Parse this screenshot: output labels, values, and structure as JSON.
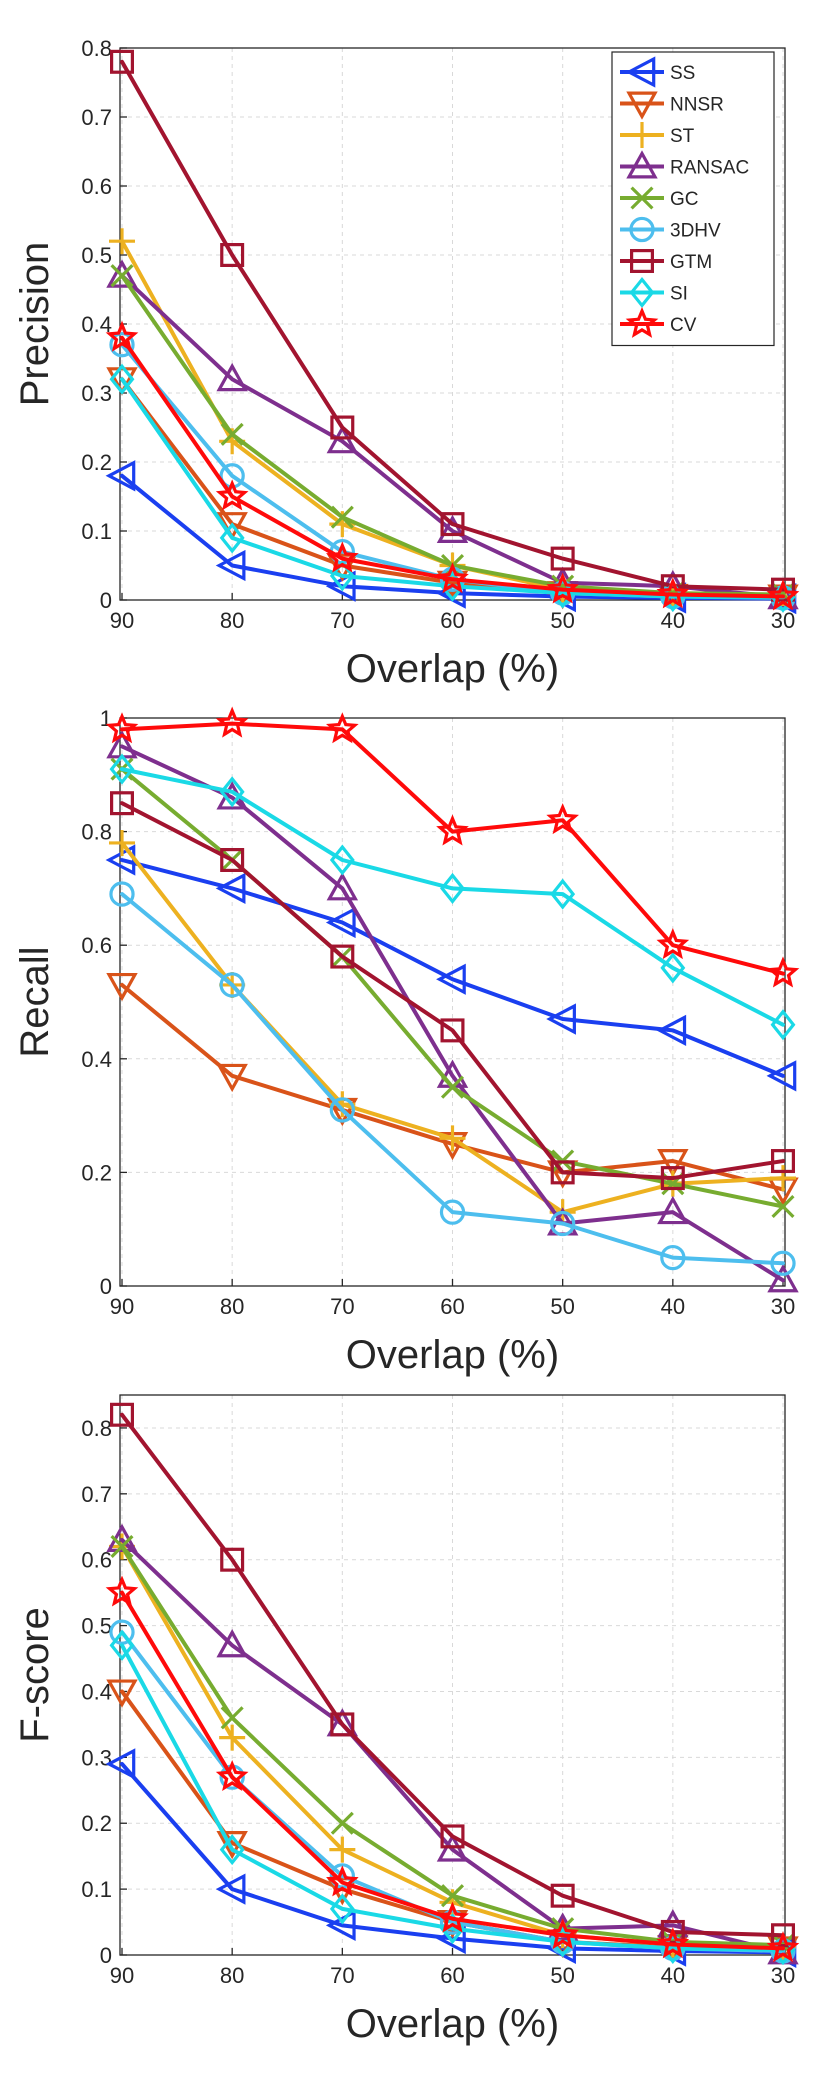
{
  "chart_data": [
    {
      "type": "line",
      "ylabel": "Precision",
      "xlabel": "Overlap (%)",
      "x": [
        90,
        80,
        70,
        60,
        50,
        40,
        30
      ],
      "xticks": [
        "90",
        "80",
        "70",
        "60",
        "50",
        "40",
        "30"
      ],
      "ylim": [
        0,
        0.8
      ],
      "yticks": [
        "0",
        "0.1",
        "0.2",
        "0.3",
        "0.4",
        "0.5",
        "0.6",
        "0.7",
        "0.8"
      ],
      "grid": true,
      "legend": "top-right",
      "series": [
        {
          "name": "SS",
          "color": "#1a3ff0",
          "marker": "triangle-left",
          "values": [
            0.18,
            0.05,
            0.02,
            0.01,
            0.005,
            0.003,
            0.002
          ]
        },
        {
          "name": "NNSR",
          "color": "#d95319",
          "marker": "triangle-down",
          "values": [
            0.32,
            0.11,
            0.05,
            0.025,
            0.01,
            0.006,
            0.005
          ]
        },
        {
          "name": "ST",
          "color": "#edb120",
          "marker": "plus",
          "values": [
            0.52,
            0.23,
            0.11,
            0.05,
            0.015,
            0.008,
            0.006
          ]
        },
        {
          "name": "RANSAC",
          "color": "#7e2f8e",
          "marker": "triangle-up",
          "values": [
            0.47,
            0.32,
            0.23,
            0.1,
            0.025,
            0.02,
            0.004
          ]
        },
        {
          "name": "GC",
          "color": "#77ac30",
          "marker": "x",
          "values": [
            0.47,
            0.24,
            0.12,
            0.05,
            0.02,
            0.01,
            0.008
          ]
        },
        {
          "name": "3DHV",
          "color": "#4dbeee",
          "marker": "circle",
          "values": [
            0.37,
            0.18,
            0.07,
            0.03,
            0.01,
            0.005,
            0.003
          ]
        },
        {
          "name": "GTM",
          "color": "#a2142f",
          "marker": "square",
          "values": [
            0.78,
            0.5,
            0.25,
            0.11,
            0.06,
            0.02,
            0.015
          ]
        },
        {
          "name": "SI",
          "color": "#1ad9e6",
          "marker": "diamond",
          "values": [
            0.32,
            0.09,
            0.035,
            0.02,
            0.01,
            0.005,
            0.004
          ]
        },
        {
          "name": "CV",
          "color": "#ff0a0a",
          "marker": "star",
          "values": [
            0.38,
            0.15,
            0.06,
            0.03,
            0.015,
            0.008,
            0.005
          ]
        }
      ]
    },
    {
      "type": "line",
      "ylabel": "Recall",
      "xlabel": "Overlap (%)",
      "x": [
        90,
        80,
        70,
        60,
        50,
        40,
        30
      ],
      "xticks": [
        "90",
        "80",
        "70",
        "60",
        "50",
        "40",
        "30"
      ],
      "ylim": [
        0,
        1
      ],
      "yticks": [
        "0",
        "0.2",
        "0.4",
        "0.6",
        "0.8",
        "1"
      ],
      "grid": true,
      "legend": "",
      "series": [
        {
          "name": "SS",
          "color": "#1a3ff0",
          "marker": "triangle-left",
          "values": [
            0.75,
            0.7,
            0.64,
            0.54,
            0.47,
            0.45,
            0.37
          ]
        },
        {
          "name": "NNSR",
          "color": "#d95319",
          "marker": "triangle-down",
          "values": [
            0.53,
            0.37,
            0.31,
            0.25,
            0.2,
            0.22,
            0.17
          ]
        },
        {
          "name": "ST",
          "color": "#edb120",
          "marker": "plus",
          "values": [
            0.78,
            0.53,
            0.32,
            0.26,
            0.13,
            0.18,
            0.19
          ]
        },
        {
          "name": "RANSAC",
          "color": "#7e2f8e",
          "marker": "triangle-up",
          "values": [
            0.95,
            0.86,
            0.7,
            0.37,
            0.11,
            0.13,
            0.01
          ]
        },
        {
          "name": "GC",
          "color": "#77ac30",
          "marker": "x",
          "values": [
            0.91,
            0.75,
            0.58,
            0.35,
            0.22,
            0.18,
            0.14
          ]
        },
        {
          "name": "3DHV",
          "color": "#4dbeee",
          "marker": "circle",
          "values": [
            0.69,
            0.53,
            0.31,
            0.13,
            0.11,
            0.05,
            0.04
          ]
        },
        {
          "name": "GTM",
          "color": "#a2142f",
          "marker": "square",
          "values": [
            0.85,
            0.75,
            0.58,
            0.45,
            0.2,
            0.19,
            0.22
          ]
        },
        {
          "name": "SI",
          "color": "#1ad9e6",
          "marker": "diamond",
          "values": [
            0.91,
            0.87,
            0.75,
            0.7,
            0.69,
            0.56,
            0.46
          ]
        },
        {
          "name": "CV",
          "color": "#ff0a0a",
          "marker": "star",
          "values": [
            0.98,
            0.99,
            0.98,
            0.8,
            0.82,
            0.6,
            0.55
          ]
        }
      ]
    },
    {
      "type": "line",
      "ylabel": "F-score",
      "xlabel": "Overlap (%)",
      "x": [
        90,
        80,
        70,
        60,
        50,
        40,
        30
      ],
      "xticks": [
        "90",
        "80",
        "70",
        "60",
        "50",
        "40",
        "30"
      ],
      "ylim": [
        0,
        0.85
      ],
      "yticks": [
        "0",
        "0.1",
        "0.2",
        "0.3",
        "0.4",
        "0.5",
        "0.6",
        "0.7",
        "0.8"
      ],
      "grid": true,
      "legend": "",
      "series": [
        {
          "name": "SS",
          "color": "#1a3ff0",
          "marker": "triangle-left",
          "values": [
            0.29,
            0.1,
            0.045,
            0.025,
            0.01,
            0.006,
            0.004
          ]
        },
        {
          "name": "NNSR",
          "color": "#d95319",
          "marker": "triangle-down",
          "values": [
            0.4,
            0.17,
            0.1,
            0.05,
            0.02,
            0.012,
            0.01
          ]
        },
        {
          "name": "ST",
          "color": "#edb120",
          "marker": "plus",
          "values": [
            0.62,
            0.33,
            0.16,
            0.08,
            0.03,
            0.016,
            0.012
          ]
        },
        {
          "name": "RANSAC",
          "color": "#7e2f8e",
          "marker": "triangle-up",
          "values": [
            0.63,
            0.47,
            0.35,
            0.16,
            0.04,
            0.045,
            0.004
          ]
        },
        {
          "name": "GC",
          "color": "#77ac30",
          "marker": "x",
          "values": [
            0.62,
            0.36,
            0.2,
            0.09,
            0.04,
            0.02,
            0.015
          ]
        },
        {
          "name": "3DHV",
          "color": "#4dbeee",
          "marker": "circle",
          "values": [
            0.49,
            0.27,
            0.12,
            0.05,
            0.02,
            0.01,
            0.006
          ]
        },
        {
          "name": "GTM",
          "color": "#a2142f",
          "marker": "square",
          "values": [
            0.82,
            0.6,
            0.35,
            0.18,
            0.09,
            0.035,
            0.03
          ]
        },
        {
          "name": "SI",
          "color": "#1ad9e6",
          "marker": "diamond",
          "values": [
            0.47,
            0.16,
            0.07,
            0.04,
            0.02,
            0.01,
            0.008
          ]
        },
        {
          "name": "CV",
          "color": "#ff0a0a",
          "marker": "star",
          "values": [
            0.55,
            0.27,
            0.11,
            0.055,
            0.03,
            0.016,
            0.01
          ]
        }
      ]
    }
  ]
}
